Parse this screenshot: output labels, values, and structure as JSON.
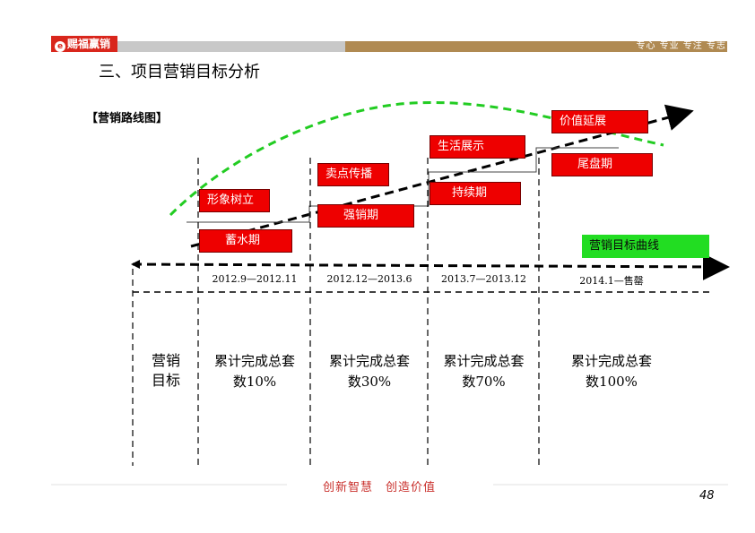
{
  "header": {
    "logo_text": "赐福赢销",
    "slogan": "专心 专业 专注 专志"
  },
  "title": "三、项目营销目标分析",
  "section_label": "【营销路线图】",
  "stages_top": [
    "形象树立",
    "卖点传播",
    "生活展示",
    "价值延展"
  ],
  "stages_bottom": [
    "蓄水期",
    "强销期",
    "持续期",
    "尾盘期"
  ],
  "legend": "营销目标曲线",
  "periods": [
    "2012.9—2012.11",
    "2012.12—2013.6",
    "2013.7—2013.12",
    "2014.1—售罄"
  ],
  "goal_label": [
    "营销",
    "目标"
  ],
  "goals": [
    {
      "line1": "累计完成总套",
      "line2": "数10%"
    },
    {
      "line1": "累计完成总套",
      "line2": "数30%"
    },
    {
      "line1": "累计完成总套",
      "line2": "数70%"
    },
    {
      "line1": "累计完成总套",
      "line2": "数100%"
    }
  ],
  "footer": {
    "slogan": "创新智慧　创造价值",
    "page": "48"
  },
  "colors": {
    "red": "#ee0000",
    "green_curve": "#22cc22",
    "brand_red": "#d9261c",
    "brand_brown": "#b08a52"
  }
}
